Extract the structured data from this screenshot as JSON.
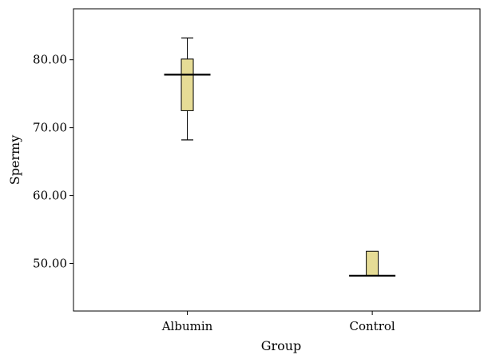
{
  "chart_data": {
    "type": "boxplot",
    "title": "",
    "xlabel": "Group",
    "ylabel": "Spermy",
    "categories": [
      "Albumin",
      "Control"
    ],
    "ylim": [
      43,
      87.5
    ],
    "yticks": [
      50,
      60,
      70,
      80
    ],
    "ytick_labels": [
      "50.00",
      "60.00",
      "70.00",
      "80.00"
    ],
    "grid": false,
    "boxes": [
      {
        "category": "Albumin",
        "whisker_low": 68.2,
        "q1": 72.5,
        "median": 77.8,
        "q3": 80.1,
        "whisker_high": 83.2
      },
      {
        "category": "Control",
        "whisker_low": 48.2,
        "q1": 48.2,
        "median": 48.2,
        "q3": 51.8,
        "whisker_high": 51.8
      }
    ],
    "box_color": "#e6dc96",
    "line_color": "#000000"
  }
}
